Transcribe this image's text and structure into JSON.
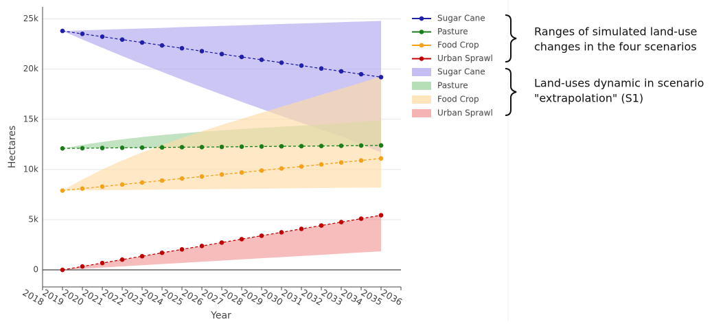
{
  "chart_data": {
    "type": "line",
    "x_label": "Year",
    "y_label": "Hectares",
    "x": [
      2019,
      2020,
      2021,
      2022,
      2023,
      2024,
      2025,
      2026,
      2027,
      2028,
      2029,
      2030,
      2031,
      2032,
      2033,
      2034,
      2035
    ],
    "xlim": [
      2018,
      2036
    ],
    "xticks": [
      2018,
      2019,
      2020,
      2021,
      2022,
      2023,
      2024,
      2025,
      2026,
      2027,
      2028,
      2029,
      2030,
      2031,
      2032,
      2033,
      2034,
      2035,
      2036
    ],
    "ylim": [
      -1700,
      26200
    ],
    "yticks": [
      0,
      {
        "value": 5000,
        "label": "5k"
      },
      {
        "value": 10000,
        "label": "10k"
      },
      {
        "value": 15000,
        "label": "15k"
      },
      {
        "value": 20000,
        "label": "20k"
      },
      {
        "value": 25000,
        "label": "25k"
      }
    ],
    "grid": true,
    "ranges": [
      {
        "name": "Sugar Cane",
        "color": "#b0a8ee",
        "lower": [
          23800,
          22950,
          22120,
          21300,
          20500,
          19720,
          18950,
          18200,
          17460,
          16740,
          16030,
          15330,
          14650,
          13980,
          13320,
          12500,
          11700
        ],
        "upper": [
          23800,
          23860,
          23930,
          23990,
          24050,
          24110,
          24180,
          24240,
          24300,
          24360,
          24430,
          24490,
          24550,
          24610,
          24680,
          24740,
          24800
        ]
      },
      {
        "name": "Pasture",
        "color": "#9fd49f",
        "lower": [
          12100,
          12120,
          12140,
          12160,
          12180,
          12200,
          12220,
          12230,
          12250,
          12270,
          12290,
          12310,
          12320,
          12340,
          12360,
          12380,
          12400
        ],
        "upper": [
          12100,
          12450,
          12750,
          13000,
          13230,
          13430,
          13600,
          13760,
          13900,
          14030,
          14150,
          14260,
          14370,
          14480,
          14600,
          14750,
          14900
        ]
      },
      {
        "name": "Food Crop",
        "color": "#fddca6",
        "lower": [
          7900,
          7920,
          7940,
          7960,
          7980,
          8000,
          8020,
          8040,
          8050,
          8070,
          8090,
          8110,
          8130,
          8150,
          8170,
          8190,
          8200
        ],
        "upper": [
          7900,
          9000,
          10000,
          10900,
          11700,
          12450,
          13150,
          13800,
          14450,
          15050,
          15650,
          16250,
          16850,
          17450,
          18050,
          18650,
          19300
        ]
      },
      {
        "name": "Urban Sprawl",
        "color": "#f29a9a",
        "lower": [
          0,
          120,
          230,
          350,
          460,
          580,
          690,
          810,
          920,
          1040,
          1160,
          1270,
          1390,
          1500,
          1620,
          1740,
          1850
        ],
        "upper": [
          0,
          340,
          680,
          1020,
          1360,
          1700,
          2040,
          2380,
          2720,
          3060,
          3400,
          3740,
          4080,
          4420,
          4760,
          5100,
          5440
        ]
      }
    ],
    "series": [
      {
        "name": "Sugar Cane",
        "color": "#1f1fa8",
        "values": [
          23800,
          23510,
          23230,
          22940,
          22650,
          22360,
          22080,
          21790,
          21500,
          21210,
          20930,
          20640,
          20350,
          20060,
          19780,
          19490,
          19200
        ]
      },
      {
        "name": "Pasture",
        "color": "#1a7d1a",
        "values": [
          12100,
          12120,
          12140,
          12160,
          12180,
          12200,
          12220,
          12230,
          12250,
          12270,
          12290,
          12310,
          12320,
          12340,
          12360,
          12380,
          12400
        ]
      },
      {
        "name": "Food Crop",
        "color": "#f5a21b",
        "values": [
          7900,
          8100,
          8300,
          8500,
          8700,
          8900,
          9100,
          9300,
          9500,
          9700,
          9900,
          10100,
          10300,
          10500,
          10700,
          10900,
          11100
        ]
      },
      {
        "name": "Urban Sprawl",
        "color": "#c00000",
        "values": [
          0,
          340,
          680,
          1020,
          1360,
          1700,
          2040,
          2380,
          2720,
          3060,
          3400,
          3740,
          4080,
          4420,
          4760,
          5100,
          5440
        ]
      }
    ],
    "annotations": [
      [
        "Ranges of simulated land-use",
        "changes in the four scenarios"
      ],
      [
        "Land-uses dynamic in scenario",
        "\"extrapolation\" (S1)"
      ]
    ]
  }
}
